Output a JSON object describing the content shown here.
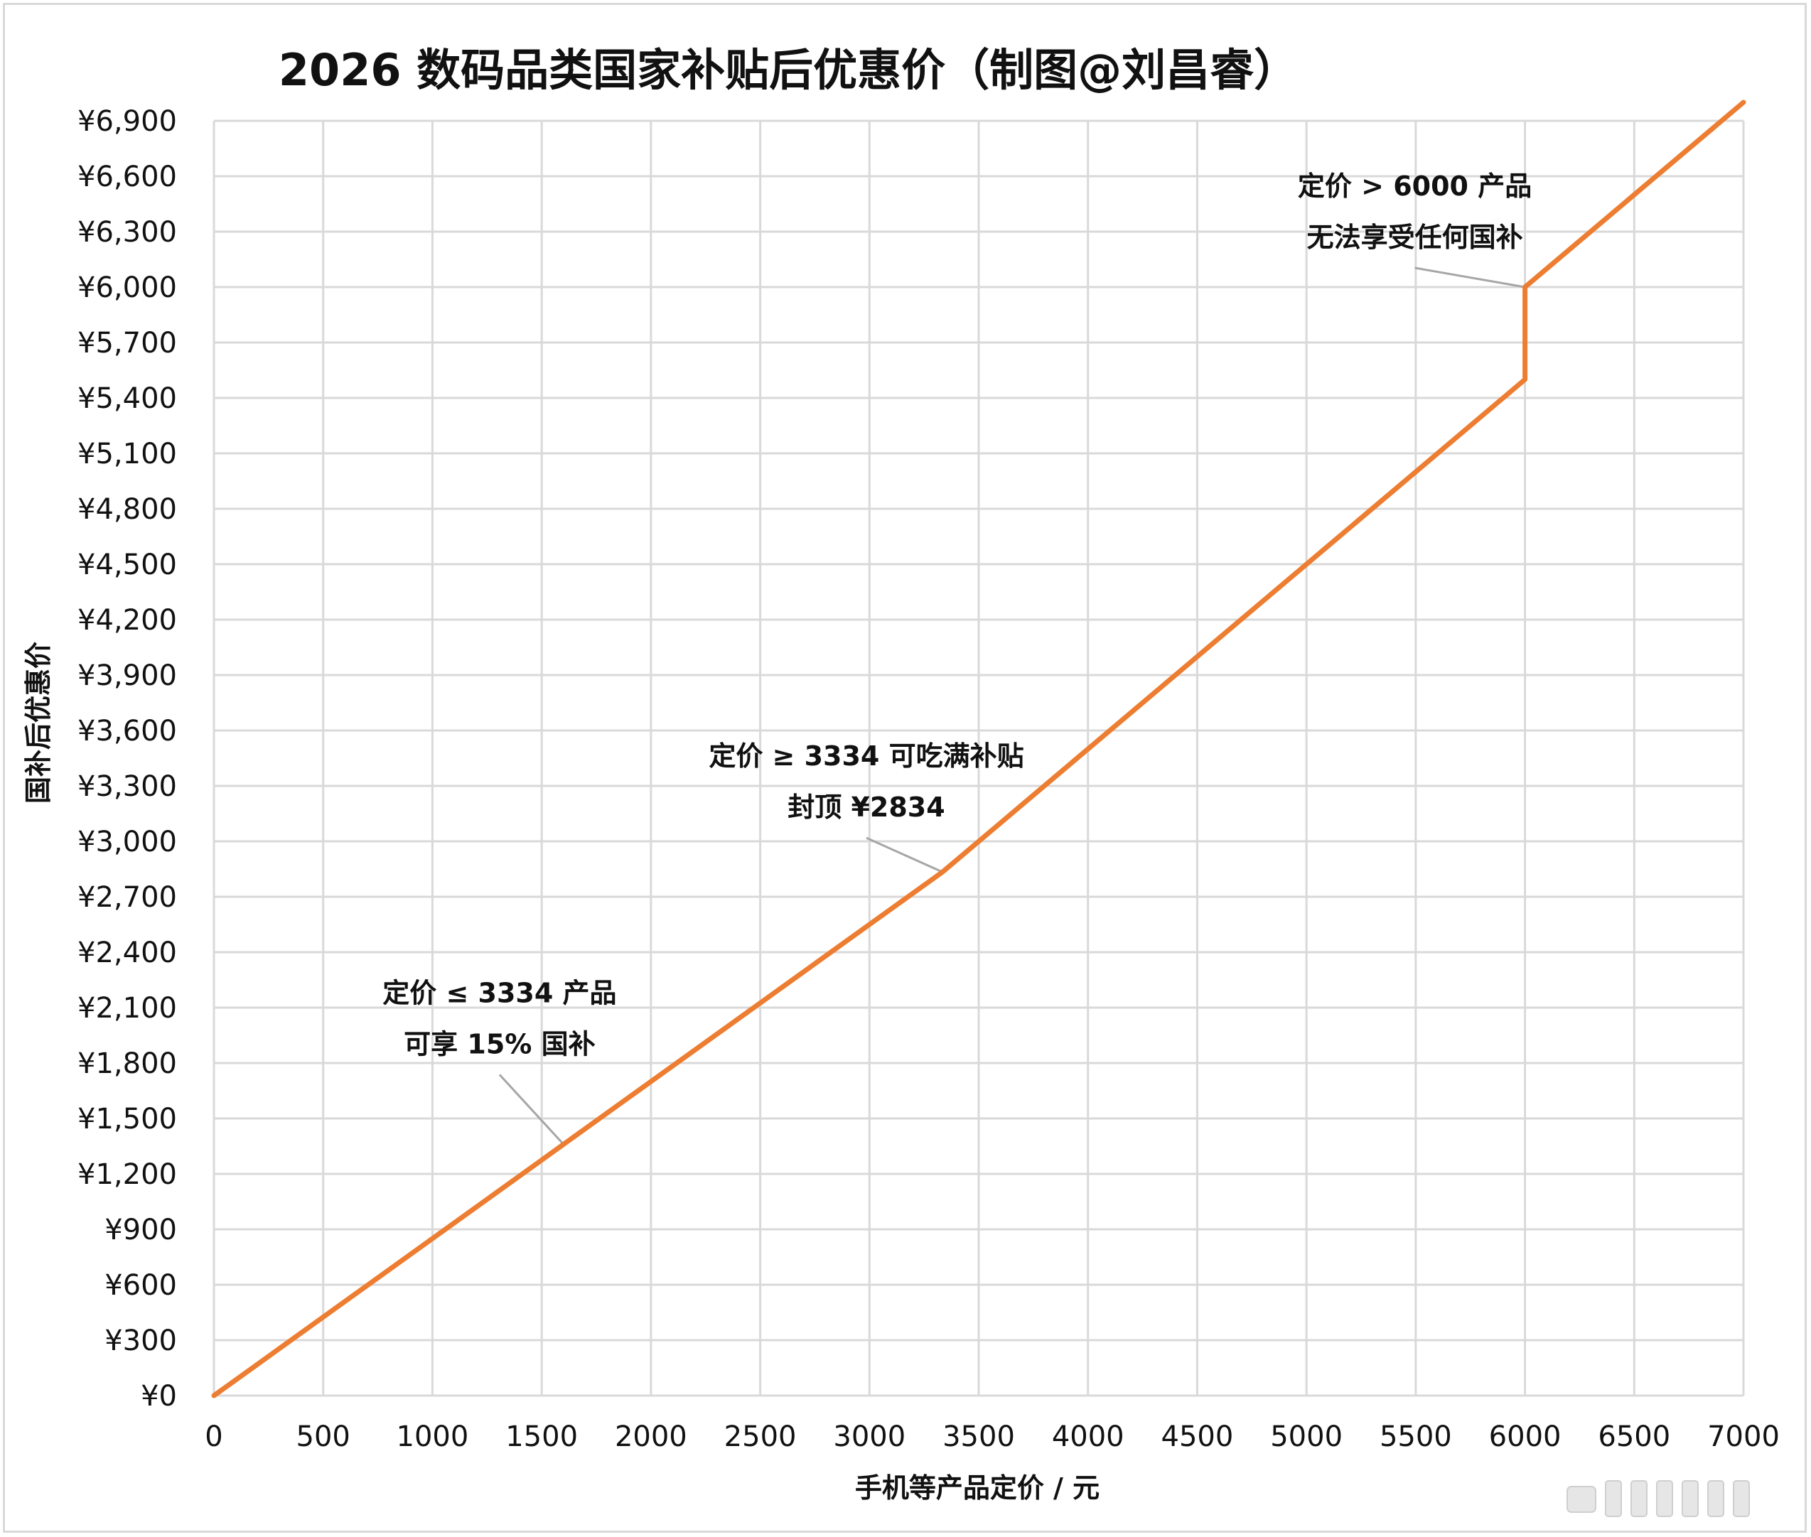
{
  "chart_data": {
    "type": "line",
    "title": "2026 数码品类国家补贴后优惠价（制图@刘昌睿）",
    "xlabel": "手机等产品定价 / 元",
    "ylabel": "国补后优惠价",
    "xlim": [
      0,
      7000
    ],
    "ylim": [
      0,
      6900
    ],
    "x_ticks": [
      "0",
      "500",
      "1000",
      "1500",
      "2000",
      "2500",
      "3000",
      "3500",
      "4000",
      "4500",
      "5000",
      "5500",
      "6000",
      "6500",
      "7000"
    ],
    "y_ticks": [
      "¥0",
      "¥300",
      "¥600",
      "¥900",
      "¥1,200",
      "¥1,500",
      "¥1,800",
      "¥2,100",
      "¥2,400",
      "¥2,700",
      "¥3,000",
      "¥3,300",
      "¥3,600",
      "¥3,900",
      "¥4,200",
      "¥4,500",
      "¥4,800",
      "¥5,100",
      "¥5,400",
      "¥5,700",
      "¥6,000",
      "¥6,300",
      "¥6,600",
      "¥6,900"
    ],
    "grid": true,
    "series": [
      {
        "color": "#ED7D31",
        "points": [
          [
            0,
            0
          ],
          [
            3334,
            2834
          ],
          [
            6000,
            5500
          ],
          [
            6000,
            6000
          ],
          [
            7000,
            7000
          ]
        ]
      }
    ],
    "annotations": [
      {
        "lines": [
          "定价 ≤ 3334 产品",
          "可享 15% 国补"
        ],
        "point": [
          1600,
          1360
        ]
      },
      {
        "lines": [
          "定价 ≥ 3334 可吃满补贴",
          "封顶 ¥2834"
        ],
        "point": [
          3334,
          2834
        ]
      },
      {
        "lines": [
          "定价 > 6000 产品",
          "无法享受任何国补"
        ],
        "point": [
          6000,
          6000
        ]
      }
    ]
  }
}
